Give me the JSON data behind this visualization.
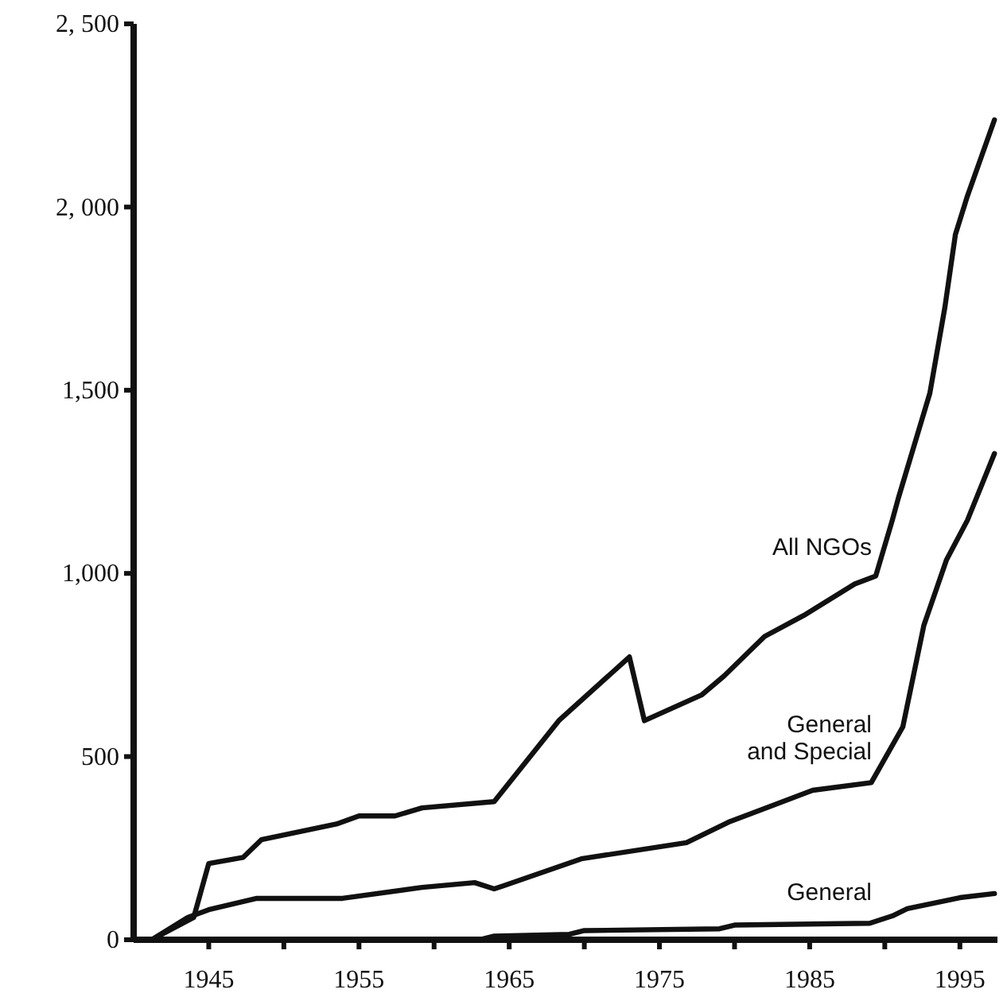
{
  "chart_data": {
    "type": "line",
    "xlim": [
      1940,
      1997.5
    ],
    "ylim": [
      0,
      2500
    ],
    "xticks": [
      1945,
      {
        "value": 1950,
        "label": null
      },
      1955,
      {
        "value": 1960,
        "label": null
      },
      1965,
      {
        "value": 1970,
        "label": null
      },
      1975,
      {
        "value": 1980,
        "label": null
      },
      1985,
      {
        "value": 1990,
        "label": null
      },
      1995
    ],
    "yticks": [
      0,
      500,
      {
        "value": 1000,
        "label": "1,000"
      },
      {
        "value": 1500,
        "label": "1,500"
      },
      {
        "value": 2000,
        "label": "2, 000"
      },
      {
        "value": 2500,
        "label": "2, 500"
      }
    ],
    "grid": false,
    "marker": "none",
    "line_style": "solid",
    "series": [
      {
        "name": "All NGOs",
        "color": "#111111",
        "x": [
          1941.2,
          1944,
          1945,
          1947.3,
          1948.5,
          1953.5,
          1955,
          1957.4,
          1959.2,
          1964,
          1968.3,
          1973,
          1974,
          1977.8,
          1979.3,
          1982,
          1984.6,
          1988,
          1989.4,
          1990.5,
          1990.9,
          1993,
          1994,
          1994.7,
          1995.5,
          1997.3
        ],
        "values": [
          0,
          61,
          208,
          225,
          273,
          316,
          338,
          338,
          360,
          377,
          598,
          772,
          598,
          668,
          720,
          828,
          885,
          971,
          993,
          1145,
          1205,
          1492,
          1726,
          1925,
          2030,
          2238
        ]
      },
      {
        "name": "General\nand Special",
        "color": "#111111",
        "x": [
          1941.2,
          1943.6,
          1945,
          1948.2,
          1953.9,
          1959.2,
          1962.7,
          1964,
          1964.6,
          1969.8,
          1976.8,
          1979.6,
          1985.2,
          1989.1,
          1991.2,
          1992.6,
          1994.1,
          1995.5,
          1997.3
        ],
        "values": [
          0,
          61,
          82,
          113,
          113,
          143,
          156,
          139,
          147,
          221,
          265,
          321,
          408,
          429,
          581,
          858,
          1036,
          1145,
          1327
        ]
      },
      {
        "name": "General",
        "color": "#111111",
        "x": [
          1941.2,
          1963,
          1964,
          1969,
          1970,
          1979,
          1980,
          1989,
          1990.5,
          1991.5,
          1995,
          1997.3
        ],
        "values": [
          0,
          0,
          10,
          15,
          25,
          30,
          40,
          45,
          65,
          85,
          115,
          126
        ]
      }
    ]
  }
}
